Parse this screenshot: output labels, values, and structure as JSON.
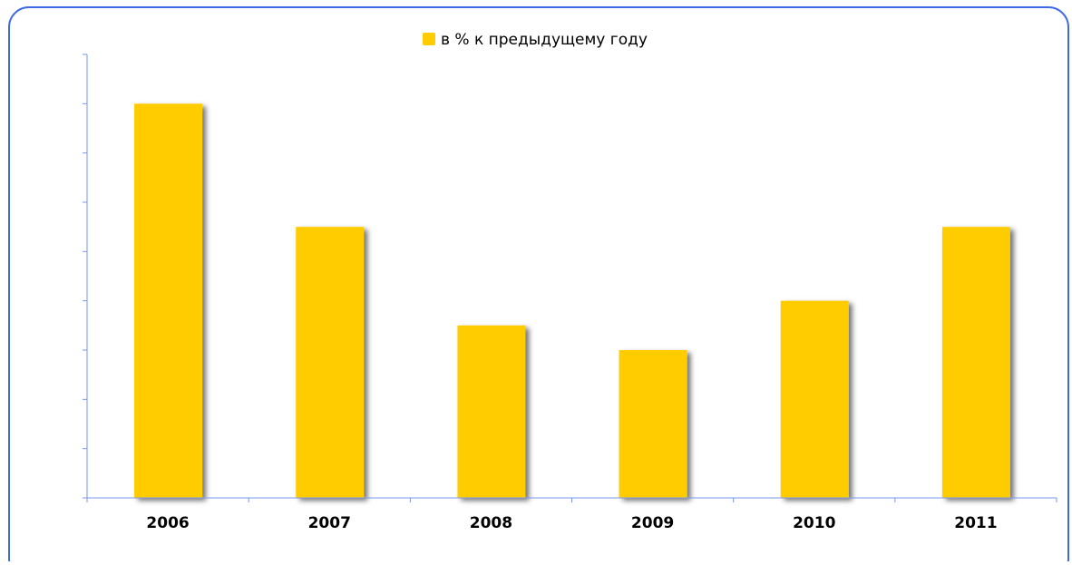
{
  "chart_data": {
    "type": "bar",
    "legend": "в % к предыдущему году",
    "categories": [
      "2006",
      "2007",
      "2008",
      "2009",
      "2010",
      "2011"
    ],
    "values": [
      8,
      5.5,
      3.5,
      3,
      4,
      5.5
    ],
    "color": "#ffcc00",
    "ylim": [
      0,
      9
    ],
    "yticks": [
      0,
      1,
      2,
      3,
      4,
      5,
      6,
      7,
      8,
      9
    ]
  }
}
